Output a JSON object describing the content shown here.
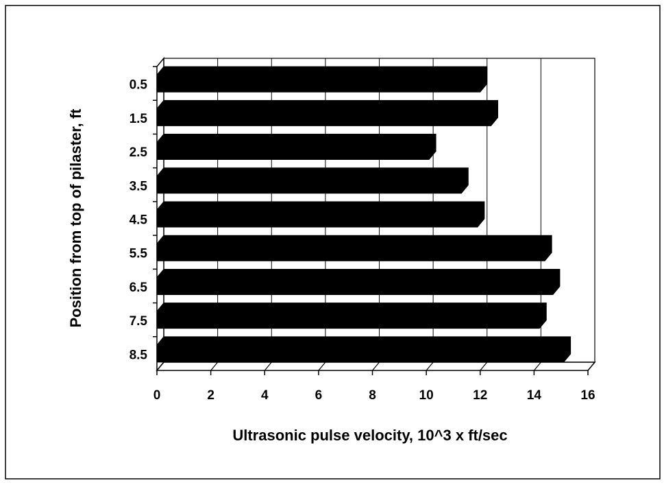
{
  "chart_data": {
    "type": "bar",
    "orientation": "horizontal",
    "x_label": "Ultrasonic pulse velocity, 10^3 x ft/sec",
    "y_label": "Position from top of pilaster, ft",
    "categories": [
      "0.5",
      "1.5",
      "2.5",
      "3.5",
      "4.5",
      "5.5",
      "6.5",
      "7.5",
      "8.5"
    ],
    "values": [
      12.0,
      12.4,
      10.1,
      11.3,
      11.9,
      14.4,
      14.7,
      14.2,
      15.1
    ],
    "color": "#000000",
    "xlim": [
      0,
      16
    ],
    "xticks": [
      0,
      2,
      4,
      6,
      8,
      10,
      12,
      14,
      16
    ],
    "grid": true
  }
}
